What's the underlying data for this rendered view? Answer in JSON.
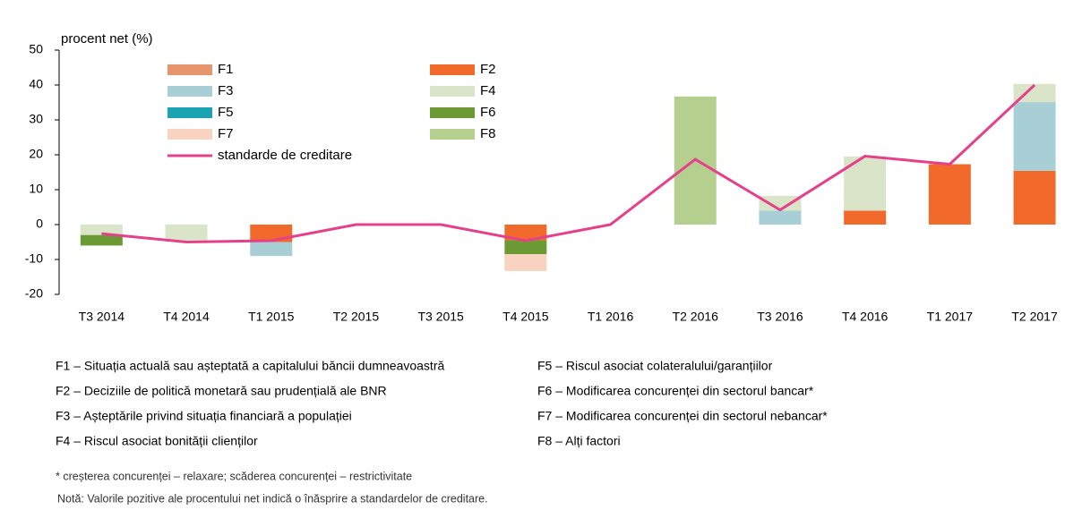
{
  "chart_data": {
    "type": "bar",
    "y_label": "procent net (%)",
    "categories": [
      "T3 2014",
      "T4 2014",
      "T1 2015",
      "T2 2015",
      "T3 2015",
      "T4 2015",
      "T1 2016",
      "T2 2016",
      "T3 2016",
      "T4 2016",
      "T1 2017",
      "T2 2017"
    ],
    "ylim": [
      -20,
      50
    ],
    "yticks": [
      -20,
      -10,
      0,
      10,
      20,
      30,
      40,
      50
    ],
    "series": [
      {
        "name": "F1",
        "color": "#e8956d",
        "values": [
          null,
          null,
          null,
          null,
          null,
          null,
          null,
          null,
          null,
          null,
          null,
          null
        ]
      },
      {
        "name": "F2",
        "color": "#f26a2b",
        "values": [
          null,
          null,
          -5,
          null,
          null,
          -4.5,
          null,
          null,
          null,
          4,
          17.3,
          15.4
        ]
      },
      {
        "name": "F3",
        "color": "#a8cfd6",
        "values": [
          null,
          null,
          -4,
          null,
          null,
          null,
          null,
          null,
          4,
          null,
          null,
          19.7
        ]
      },
      {
        "name": "F4",
        "color": "#d9e4c9",
        "values": [
          -3,
          -4.5,
          null,
          null,
          null,
          null,
          null,
          null,
          4.2,
          15.5,
          null,
          5.2
        ]
      },
      {
        "name": "F5",
        "color": "#1aa3b0",
        "values": [
          null,
          null,
          null,
          null,
          null,
          null,
          null,
          null,
          null,
          null,
          null,
          null
        ]
      },
      {
        "name": "F6",
        "color": "#6b9a35",
        "values": [
          -3,
          null,
          null,
          null,
          null,
          -4,
          null,
          null,
          null,
          null,
          null,
          null
        ]
      },
      {
        "name": "F7",
        "color": "#f8d4c0",
        "values": [
          null,
          null,
          null,
          null,
          null,
          -4.8,
          null,
          null,
          null,
          null,
          null,
          null
        ]
      },
      {
        "name": "F8",
        "color": "#b5cf8f",
        "values": [
          null,
          null,
          null,
          null,
          null,
          null,
          null,
          36.7,
          null,
          null,
          null,
          null
        ]
      }
    ],
    "line": {
      "name": "standarde de creditare",
      "color": "#e6408a",
      "values": [
        -2.6,
        -5,
        -4.6,
        0,
        0,
        -4.6,
        0,
        18.7,
        4.2,
        19.6,
        17.3,
        40
      ]
    },
    "definitions": [
      "F1 – Situația actuală sau așteptată a capitalului băncii dumneavoastră",
      "F2 – Deciziile de politică monetară sau prudențială ale BNR",
      "F3 – Așteptările privind situația financiară a populației",
      "F4 – Riscul asociat bonității clienților",
      "F5 – Riscul asociat colateralului/garanțiilor",
      "F6 – Modificarea concurenței din sectorul bancar*",
      "F7 – Modificarea concurenței din sectorul nebancar*",
      "F8 – Alți factori"
    ],
    "notes": [
      "* creșterea concurenței – relaxare; scăderea concurenței – restrictivitate",
      "Notă: Valorile pozitive ale procentului net indică o înăsprire a standardelor de creditare."
    ]
  }
}
